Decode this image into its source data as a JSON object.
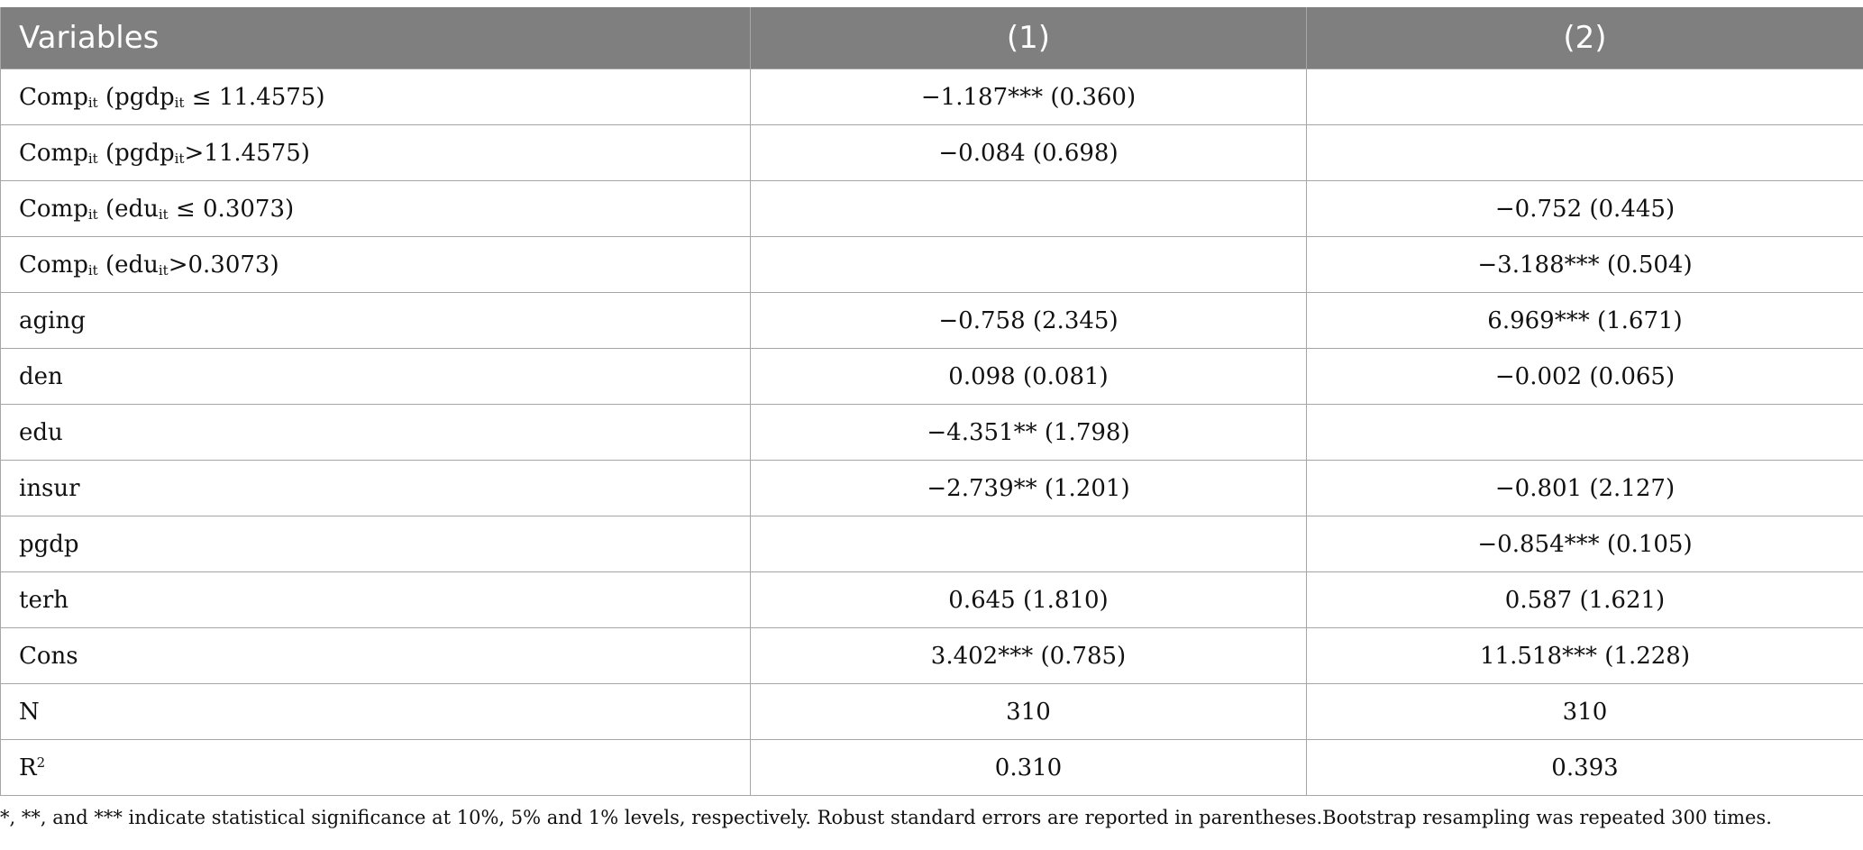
{
  "table": {
    "headers": [
      "Variables",
      "(1)",
      "(2)"
    ],
    "rows": [
      {
        "var": {
          "base": "Comp",
          "sub": "it",
          "rest": " (pgdp",
          "sub2": "it",
          "rest2": " ≤ 11.4575)"
        },
        "c1": "−1.187*** (0.360)",
        "c2": ""
      },
      {
        "var": {
          "base": "Comp",
          "sub": "it",
          "rest": " (pgdp",
          "sub2": "it",
          "rest2": ">11.4575)"
        },
        "c1": "−0.084 (0.698)",
        "c2": ""
      },
      {
        "var": {
          "base": "Comp",
          "sub": "it",
          "rest": " (edu",
          "sub2": "it",
          "rest2": " ≤ 0.3073)"
        },
        "c1": "",
        "c2": "−0.752 (0.445)"
      },
      {
        "var": {
          "base": "Comp",
          "sub": "it",
          "rest": " (edu",
          "sub2": "it",
          "rest2": ">0.3073)"
        },
        "c1": "",
        "c2": "−3.188*** (0.504)"
      },
      {
        "var": {
          "base": "aging"
        },
        "c1": "−0.758 (2.345)",
        "c2": "6.969*** (1.671)"
      },
      {
        "var": {
          "base": "den"
        },
        "c1": "0.098 (0.081)",
        "c2": "−0.002 (0.065)"
      },
      {
        "var": {
          "base": "edu"
        },
        "c1": "−4.351** (1.798)",
        "c2": ""
      },
      {
        "var": {
          "base": "insur"
        },
        "c1": "−2.739** (1.201)",
        "c2": "−0.801 (2.127)"
      },
      {
        "var": {
          "base": "pgdp"
        },
        "c1": "",
        "c2": "−0.854*** (0.105)"
      },
      {
        "var": {
          "base": "terh"
        },
        "c1": "0.645 (1.810)",
        "c2": "0.587 (1.621)"
      },
      {
        "var": {
          "base": "Cons"
        },
        "c1": "3.402*** (0.785)",
        "c2": "11.518*** (1.228)"
      },
      {
        "var": {
          "base": "N"
        },
        "c1": "310",
        "c2": "310"
      },
      {
        "var": {
          "base": "R",
          "sup": "2"
        },
        "c1": "0.310",
        "c2": "0.393"
      }
    ]
  },
  "note": "*, **, and *** indicate statistical significance at 10%, 5% and 1% levels, respectively. Robust standard errors are reported in parentheses.Bootstrap resampling was repeated 300 times."
}
